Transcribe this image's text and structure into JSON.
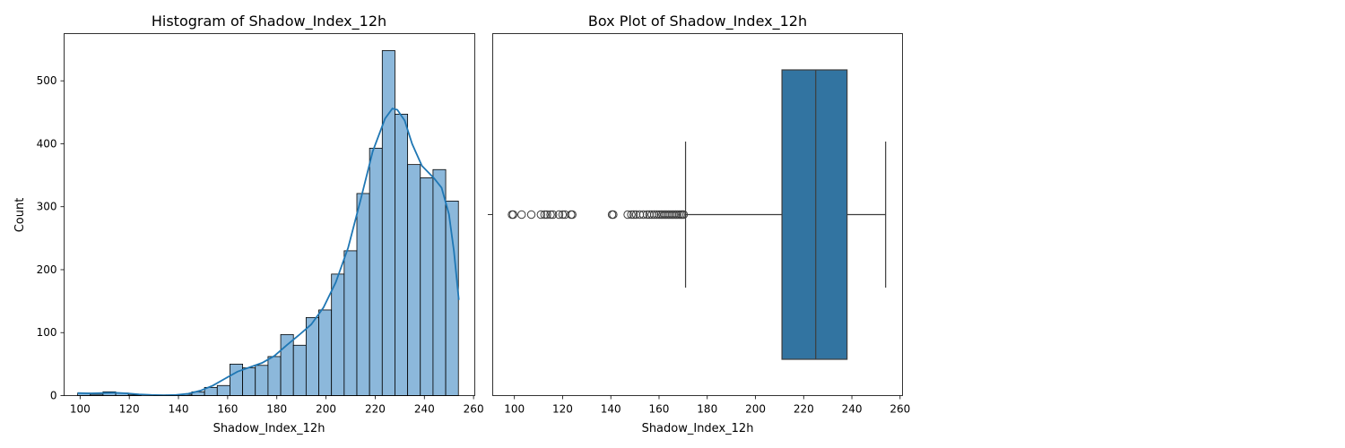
{
  "chart_data": [
    {
      "type": "histogram",
      "title": "Histogram of Shadow_Index_12h",
      "xlabel": "Shadow_Index_12h",
      "ylabel": "Count",
      "xlim": [
        93.5,
        260.5
      ],
      "ylim": [
        0,
        575
      ],
      "xticks": [
        100,
        120,
        140,
        160,
        180,
        200,
        220,
        240,
        260
      ],
      "yticks": [
        0,
        100,
        200,
        300,
        400,
        500
      ],
      "bin_start": 99.0,
      "bin_width": 5.1613,
      "counts": [
        4,
        2,
        6,
        4,
        1,
        0,
        1,
        1,
        2,
        6,
        13,
        16,
        50,
        44,
        48,
        62,
        97,
        80,
        124,
        136,
        193,
        230,
        321,
        393,
        548,
        447,
        367,
        346,
        359,
        309
      ],
      "kde": {
        "x": [
          99,
          104,
          109,
          114,
          119,
          124,
          129,
          134,
          139,
          144,
          149,
          154,
          159,
          164,
          169,
          174,
          179,
          184,
          189,
          194,
          199,
          204,
          209,
          214,
          219,
          224,
          227,
          229,
          232,
          235,
          239,
          244,
          247,
          250,
          252,
          254
        ],
        "y": [
          4,
          3.5,
          4,
          4.5,
          3.5,
          2,
          1,
          0.5,
          1,
          3,
          8,
          16,
          27,
          38,
          45,
          52,
          63,
          80,
          96,
          113,
          140,
          180,
          235,
          310,
          388,
          440,
          456,
          454,
          437,
          400,
          365,
          345,
          330,
          288,
          230,
          152
        ]
      },
      "bar_color": "#8cb8db",
      "line_color": "#1f77b4"
    },
    {
      "type": "box",
      "title": "Box Plot of Shadow_Index_12h",
      "xlabel": "Shadow_Index_12h",
      "xlim": [
        91,
        261
      ],
      "xticks": [
        100,
        120,
        140,
        160,
        180,
        200,
        220,
        240,
        260
      ],
      "q1": 211,
      "median": 225,
      "q3": 238,
      "whisker_low": 171,
      "whisker_high": 254,
      "outliers": [
        99,
        99.5,
        103,
        107,
        111,
        112.5,
        113.5,
        115,
        116,
        118.5,
        120,
        121,
        123.5,
        124,
        140.5,
        141,
        147,
        148.5,
        149.5,
        150.5,
        152,
        153.5,
        155,
        156,
        157,
        158,
        159,
        160,
        160.8,
        161.5,
        162.3,
        163,
        163.8,
        164.5,
        165.3,
        166,
        166.8,
        167.5,
        168.3,
        169,
        169.6,
        170.2
      ],
      "box_color": "#3274a1"
    }
  ]
}
